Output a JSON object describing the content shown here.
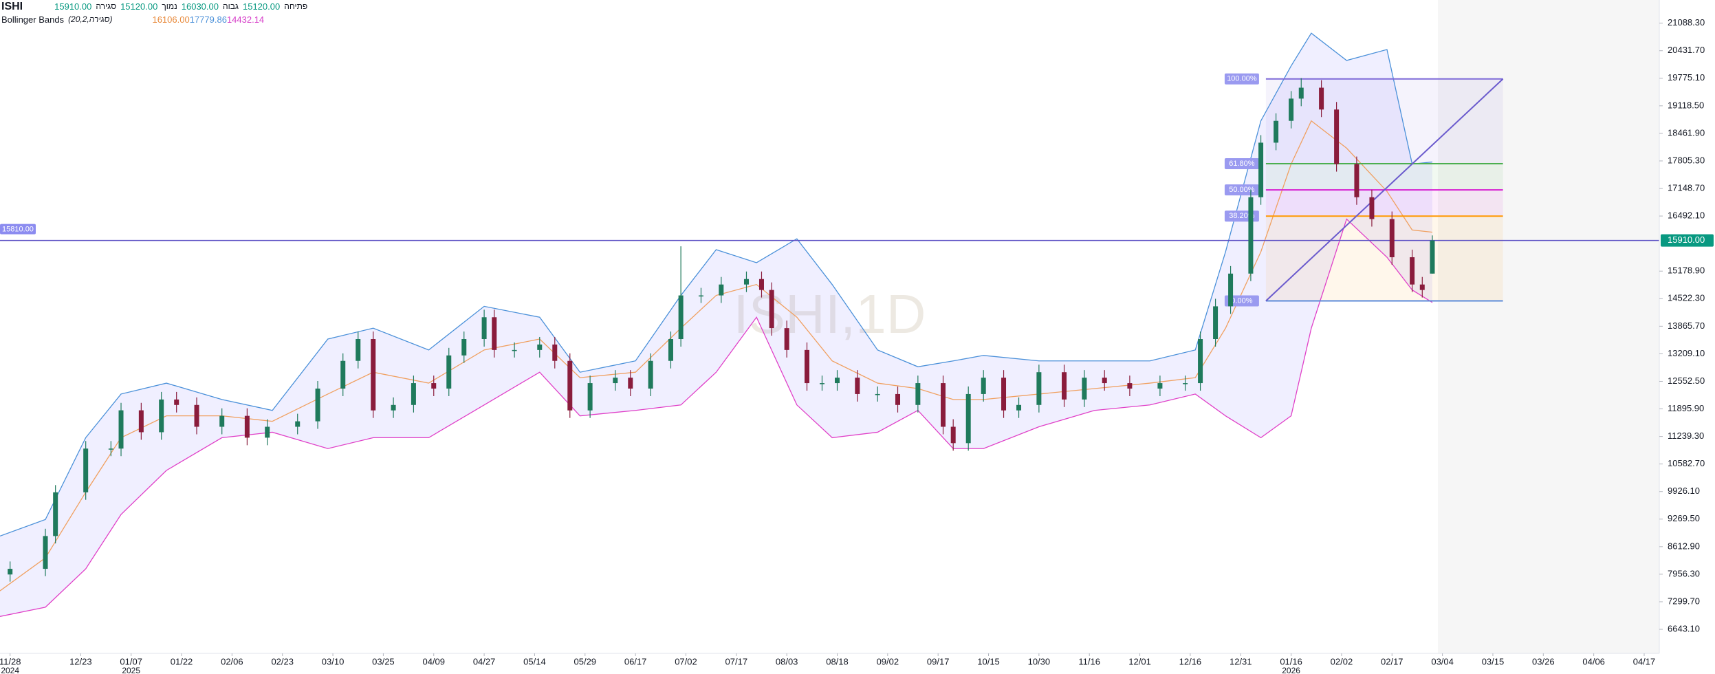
{
  "chart_data": {
    "type": "candlestick",
    "symbol": "ISHI",
    "watermark": "ISHI,1D",
    "ohlc_legend": [
      {
        "name": "סגירה",
        "text": "15910.00"
      },
      {
        "name": "נמוך",
        "text": "15120.00"
      },
      {
        "name": "גבוה",
        "text": "16030.00"
      },
      {
        "name": "פתיחה",
        "text": "15120.00"
      }
    ],
    "legend_value_color": "#089981",
    "indicator": {
      "name": "Bollinger Bands",
      "params": "(20,2,סגירה)",
      "texts": [
        {
          "text": "16106.00",
          "color": "#e8893a"
        },
        {
          "text": "17779.86",
          "color": "#4a90d9"
        },
        {
          "text": "14432.14",
          "color": "#d63cc8"
        }
      ]
    },
    "x": [
      0,
      7,
      9,
      15,
      20,
      22,
      26,
      30,
      33,
      37,
      42,
      47,
      51,
      57,
      61,
      66,
      69,
      72,
      76,
      80,
      84,
      87,
      90,
      94,
      96,
      100,
      105,
      108,
      111,
      115,
      120,
      123,
      127,
      131,
      133,
      137,
      141,
      146,
      149,
      151,
      154,
      158,
      161,
      164,
      168,
      172,
      176,
      180,
      185,
      187,
      190,
      193,
      197,
      200,
      204,
      209,
      213,
      217,
      222,
      228,
      233,
      236,
      239,
      242,
      246,
      248,
      251,
      254,
      256,
      260,
      263,
      267,
      270,
      274,
      278,
      280,
      282
    ],
    "open": [
      7950,
      8085,
      8866,
      9908,
      10950,
      10950,
      11862,
      11340,
      12120,
      11990,
      11470,
      11730,
      11210,
      11470,
      11600,
      12380,
      13040,
      13560,
      11860,
      11990,
      12510,
      12380,
      13170,
      13560,
      14080,
      13300,
      13300,
      13430,
      13040,
      11860,
      12510,
      12640,
      12380,
      13040,
      13560,
      14600,
      14600,
      14860,
      14990,
      14730,
      13820,
      13300,
      12510,
      12510,
      12640,
      12250,
      12250,
      11990,
      12510,
      11470,
      11080,
      12250,
      12640,
      11860,
      11990,
      12770,
      12120,
      12640,
      12510,
      12380,
      12510,
      12510,
      13560,
      14340,
      15120,
      16940,
      18240,
      18760,
      19290,
      19550,
      19030,
      17730,
      16940,
      16420,
      15510,
      14860,
      15120
    ],
    "high": [
      8260,
      9040,
      10080,
      11130,
      11130,
      12040,
      12040,
      12300,
      12300,
      12170,
      11910,
      11910,
      11650,
      11780,
      12560,
      13220,
      13740,
      13740,
      12170,
      12690,
      12690,
      13350,
      13740,
      14260,
      14260,
      13480,
      13610,
      13610,
      13220,
      12690,
      12820,
      12820,
      13220,
      13740,
      15770,
      14780,
      15040,
      15170,
      15170,
      14910,
      14000,
      13480,
      12690,
      12820,
      12820,
      12430,
      12430,
      12690,
      12690,
      11650,
      12430,
      12820,
      12820,
      12170,
      12950,
      12950,
      12820,
      12820,
      12690,
      12690,
      12690,
      13740,
      14520,
      15300,
      17120,
      18420,
      18940,
      19470,
      19780,
      19730,
      19210,
      17910,
      17120,
      16600,
      15690,
      15040,
      16030
    ],
    "low": [
      7780,
      7910,
      8690,
      9730,
      10770,
      10770,
      11160,
      11160,
      11810,
      11290,
      11290,
      11030,
      11030,
      11290,
      11420,
      12200,
      12860,
      11680,
      11680,
      11810,
      12200,
      12200,
      12990,
      13380,
      13120,
      13120,
      13120,
      12860,
      11680,
      11680,
      12330,
      12200,
      12200,
      12860,
      13380,
      14420,
      14420,
      14680,
      14550,
      13640,
      13120,
      12330,
      12330,
      12330,
      12070,
      12070,
      11810,
      11810,
      11290,
      10900,
      10900,
      12070,
      11680,
      11680,
      11810,
      11940,
      11940,
      12330,
      12200,
      12200,
      12330,
      12330,
      13380,
      14160,
      14940,
      16760,
      18060,
      18580,
      19110,
      18850,
      17550,
      16760,
      16240,
      15330,
      14680,
      14550,
      15120
    ],
    "close": [
      8085,
      8866,
      9908,
      10950,
      10950,
      11862,
      11340,
      12120,
      11990,
      11470,
      11730,
      11210,
      11470,
      11600,
      12380,
      13040,
      13560,
      11860,
      11990,
      12510,
      12380,
      13170,
      13560,
      14080,
      13300,
      13300,
      13430,
      13040,
      11860,
      12510,
      12640,
      12380,
      13040,
      13560,
      14600,
      14600,
      14860,
      14990,
      14730,
      13820,
      13300,
      12510,
      12510,
      12640,
      12250,
      12250,
      11990,
      12510,
      11470,
      11080,
      12250,
      12640,
      11860,
      11990,
      12770,
      12120,
      12640,
      12510,
      12380,
      12510,
      12510,
      13560,
      14340,
      15120,
      16940,
      18240,
      18760,
      19290,
      19550,
      19030,
      17730,
      16940,
      16420,
      15510,
      14860,
      14730,
      15910
    ],
    "up_color": "#1f7a5c",
    "down_color": "#8a1c3c",
    "bands": {
      "x": [
        -2,
        7,
        15,
        22,
        31,
        42,
        52,
        63,
        72,
        83,
        94,
        105,
        113,
        124,
        133,
        140,
        148,
        156,
        163,
        172,
        180,
        187,
        193,
        204,
        215,
        226,
        235,
        241,
        248,
        254,
        258,
        265,
        273,
        278,
        282
      ],
      "upper": [
        8866,
        9260,
        11210,
        12250,
        12510,
        12120,
        11860,
        13560,
        13820,
        13300,
        14340,
        14080,
        12770,
        13040,
        14600,
        15690,
        15380,
        15950,
        14860,
        13300,
        12900,
        13040,
        13170,
        13040,
        13040,
        13040,
        13300,
        15640,
        18760,
        20070,
        20850,
        20200,
        20460,
        17730,
        17779.86
      ],
      "middle": [
        7560,
        8345,
        9910,
        11210,
        11730,
        11730,
        11600,
        12250,
        12770,
        12510,
        13300,
        13560,
        12640,
        12770,
        13820,
        14600,
        14860,
        14080,
        13040,
        12510,
        12380,
        12120,
        12120,
        12250,
        12380,
        12510,
        12640,
        13820,
        15640,
        17730,
        18760,
        18110,
        17080,
        16160,
        16106
      ],
      "lower": [
        6950,
        7170,
        8085,
        9380,
        10430,
        11210,
        11340,
        10950,
        11210,
        11210,
        11990,
        12770,
        11730,
        11860,
        11990,
        12770,
        14080,
        11990,
        11210,
        11340,
        11860,
        10950,
        10950,
        11470,
        11860,
        11990,
        12250,
        11730,
        11210,
        11730,
        13820,
        16420,
        15510,
        14730,
        14432.14
      ],
      "upper_color": "#4a90d9",
      "middle_color": "#f0a060",
      "lower_color": "#e040c8",
      "fill": "#6c63ff"
    },
    "xlim": [
      -2,
      327
    ],
    "ylim": [
      6070,
      21640
    ],
    "xticks": [
      {
        "value": 0,
        "label": "11/28"
      },
      {
        "value": 14,
        "label": "12/23"
      },
      {
        "value": 24,
        "label": "01/07"
      },
      {
        "value": 34,
        "label": "01/22"
      },
      {
        "value": 44,
        "label": "02/06"
      },
      {
        "value": 54,
        "label": "02/23"
      },
      {
        "value": 64,
        "label": "03/10"
      },
      {
        "value": 74,
        "label": "03/25"
      },
      {
        "value": 84,
        "label": "04/09"
      },
      {
        "value": 94,
        "label": "04/27"
      },
      {
        "value": 104,
        "label": "05/14"
      },
      {
        "value": 114,
        "label": "05/29"
      },
      {
        "value": 124,
        "label": "06/17"
      },
      {
        "value": 134,
        "label": "07/02"
      },
      {
        "value": 144,
        "label": "07/17"
      },
      {
        "value": 154,
        "label": "08/03"
      },
      {
        "value": 164,
        "label": "08/18"
      },
      {
        "value": 174,
        "label": "09/02"
      },
      {
        "value": 184,
        "label": "09/17"
      },
      {
        "value": 194,
        "label": "10/15"
      },
      {
        "value": 204,
        "label": "10/30"
      },
      {
        "value": 214,
        "label": "11/16"
      },
      {
        "value": 224,
        "label": "12/01"
      },
      {
        "value": 234,
        "label": "12/16"
      },
      {
        "value": 244,
        "label": "12/31"
      },
      {
        "value": 254,
        "label": "01/16"
      },
      {
        "value": 264,
        "label": "02/02"
      },
      {
        "value": 274,
        "label": "02/17"
      },
      {
        "value": 284,
        "label": "03/04"
      },
      {
        "value": 294,
        "label": "03/15"
      },
      {
        "value": 304,
        "label": "03/26"
      },
      {
        "value": 314,
        "label": "04/06"
      },
      {
        "value": 324,
        "label": "04/17"
      }
    ],
    "year_labels": [
      {
        "value": 0,
        "label": "2024"
      },
      {
        "value": 24,
        "label": "2025"
      },
      {
        "value": 254,
        "label": "2026"
      }
    ],
    "yticks": [
      {
        "value": 21088.3,
        "label": "21088.30"
      },
      {
        "value": 20431.7,
        "label": "20431.70"
      },
      {
        "value": 19775.1,
        "label": "19775.10"
      },
      {
        "value": 19118.5,
        "label": "19118.50"
      },
      {
        "value": 18461.9,
        "label": "18461.90"
      },
      {
        "value": 17805.3,
        "label": "17805.30"
      },
      {
        "value": 17148.7,
        "label": "17148.70"
      },
      {
        "value": 16492.1,
        "label": "16492.10"
      },
      {
        "value": 15178.9,
        "label": "15178.90"
      },
      {
        "value": 14522.3,
        "label": "14522.30"
      },
      {
        "value": 13865.7,
        "label": "13865.70"
      },
      {
        "value": 13209.1,
        "label": "13209.10"
      },
      {
        "value": 12552.5,
        "label": "12552.50"
      },
      {
        "value": 11895.9,
        "label": "11895.90"
      },
      {
        "value": 11239.3,
        "label": "11239.30"
      },
      {
        "value": 10582.7,
        "label": "10582.70"
      },
      {
        "value": 9926.1,
        "label": "9926.10"
      },
      {
        "value": 9269.5,
        "label": "9269.50"
      },
      {
        "value": 8612.9,
        "label": "8612.90"
      },
      {
        "value": 7956.3,
        "label": "7956.30"
      },
      {
        "value": 7299.7,
        "label": "7299.70"
      },
      {
        "value": 6643.1,
        "label": "6643.10"
      }
    ],
    "price_line": {
      "value": 15910,
      "label": "15910.00",
      "left_label": "15810.00",
      "color": "#5b4fc4",
      "label_color": "#089981",
      "left_label_color": "#8c8cf0"
    },
    "fib": {
      "x": [
        249,
        296
      ],
      "label_color": "#9a9af0",
      "levels": [
        {
          "value": 19760,
          "label": "100.00%",
          "color": "#7e6ad8"
        },
        {
          "value": 17740,
          "label": "61.80%",
          "color": "#4caf50"
        },
        {
          "value": 17115,
          "label": "50.00%",
          "color": "#d61fd0"
        },
        {
          "value": 16490,
          "label": "38.20%",
          "color": "#ff9800"
        },
        {
          "value": 14470,
          "label": "0.00%",
          "color": "#5b8ad9"
        }
      ]
    },
    "trend_line": {
      "x": [
        249,
        296
      ],
      "y": [
        14470,
        19760
      ],
      "color": "#6a5acd"
    }
  }
}
